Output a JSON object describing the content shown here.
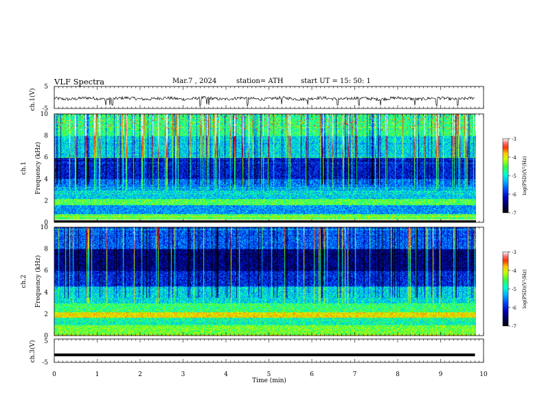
{
  "header": {
    "title": "VLF  Spectra",
    "date": "Mar.7  , 2024",
    "station": "station= ATH",
    "start": "start  UT  =    15: 50: 1"
  },
  "chart_data": [
    {
      "type": "line",
      "panel": "ch1-waveform",
      "ylabel": "ch.1(V)",
      "ylim": [
        -5,
        5
      ],
      "yticks": [
        "5",
        "-5"
      ],
      "xlim": [
        0,
        10
      ],
      "description_values": "noisy waveform around -0.5 V with spikes down to about -4 V",
      "baseline": -0.5,
      "spike_minutes": [
        1.2,
        1.3,
        1.35,
        3.4,
        3.55,
        3.6,
        4.5,
        5.3,
        5.9,
        6.6,
        7.1,
        7.6,
        8.4,
        8.9,
        9.4
      ]
    },
    {
      "type": "heatmap",
      "panel": "ch1-spectrogram",
      "ylabel_top": "ch.1",
      "ylabel": "Frequency  (kHz)",
      "ylim": [
        0,
        10
      ],
      "yticks": [
        "0",
        "2",
        "4",
        "6",
        "8",
        "10"
      ],
      "xlim": [
        0,
        9.8
      ],
      "colorbar": {
        "label": "log(PSD)(V²/Hz)",
        "range": [
          -7,
          -3
        ],
        "ticks": [
          "-3",
          "-4",
          "-5",
          "-6",
          "-7"
        ]
      }
    },
    {
      "type": "heatmap",
      "panel": "ch2-spectrogram",
      "ylabel_top": "ch.2",
      "ylabel": "Frequency  (kHz)",
      "ylim": [
        0,
        10
      ],
      "yticks": [
        "0",
        "2",
        "4",
        "6",
        "8",
        "10"
      ],
      "xlim": [
        0,
        9.8
      ],
      "colorbar": {
        "label": "log(PSD)(V²/Hz)",
        "range": [
          -7,
          -3
        ],
        "ticks": [
          "-3",
          "-4",
          "-5",
          "-6",
          "-7"
        ]
      }
    },
    {
      "type": "line",
      "panel": "ch3-waveform",
      "ylabel": "ch.3(V)",
      "ylim": [
        -5,
        5
      ],
      "yticks": [
        "5",
        "-5"
      ],
      "baseline": -1.8,
      "xlim": [
        0,
        9.8
      ]
    }
  ],
  "x_axis": {
    "label": "Time  (min)",
    "range": [
      0,
      10
    ],
    "ticks": [
      "0",
      "1",
      "2",
      "3",
      "4",
      "5",
      "6",
      "7",
      "8",
      "9",
      "10"
    ]
  },
  "colors": {
    "frame": "#000000",
    "trace": "#000000",
    "colormap": [
      "#000000",
      "#00004a",
      "#0000b4",
      "#0040ff",
      "#00a8ff",
      "#00ffd0",
      "#30ff40",
      "#c8ff00",
      "#ffd000",
      "#ff6000",
      "#ff0000",
      "#ffffff"
    ]
  }
}
